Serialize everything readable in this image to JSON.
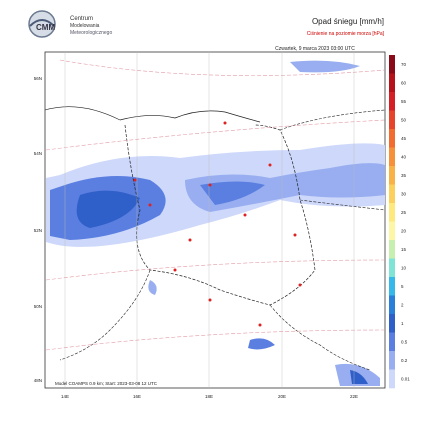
{
  "header": {
    "logo_text": [
      "Centrum",
      "Modelowania",
      "Meteorologicznego"
    ],
    "title": "Opad śniegu [mm/h]",
    "subtitle": "Ciśnienie na poziomie morza [hPa]",
    "date": "Czwartek, 9 marca 2023 03:00 UTC"
  },
  "legend": [
    {
      "label": 70,
      "color": "#8b0a1a"
    },
    {
      "label": 60,
      "color": "#b5121b"
    },
    {
      "label": 55,
      "color": "#d41f26"
    },
    {
      "label": 50,
      "color": "#e8442b"
    },
    {
      "label": 45,
      "color": "#f26b2f"
    },
    {
      "label": 40,
      "color": "#f6913a"
    },
    {
      "label": 35,
      "color": "#f9b247"
    },
    {
      "label": 30,
      "color": "#fbd05c"
    },
    {
      "label": 25,
      "color": "#fde97d"
    },
    {
      "label": 20,
      "color": "#fdf6a6"
    },
    {
      "label": 15,
      "color": "#c7f0b0"
    },
    {
      "label": 10,
      "color": "#7fe3d6"
    },
    {
      "label": 5,
      "color": "#36b8e8"
    },
    {
      "label": 2,
      "color": "#2a7fd8"
    },
    {
      "label": 1,
      "color": "#2f5fc8"
    },
    {
      "label": 0.5,
      "color": "#5b7fe0"
    },
    {
      "label": 0.2,
      "color": "#98aef0"
    },
    {
      "label": 0.01,
      "color": "#cdd8fa"
    }
  ],
  "lat_labels": [
    "56N",
    "54N",
    "52N",
    "50N",
    "48N"
  ],
  "lon_labels": [
    "14E",
    "16E",
    "18E",
    "20E",
    "22E"
  ],
  "footer": "Model COAMPS 0.9 km; Start: 2023-03-08 12 UTC"
}
